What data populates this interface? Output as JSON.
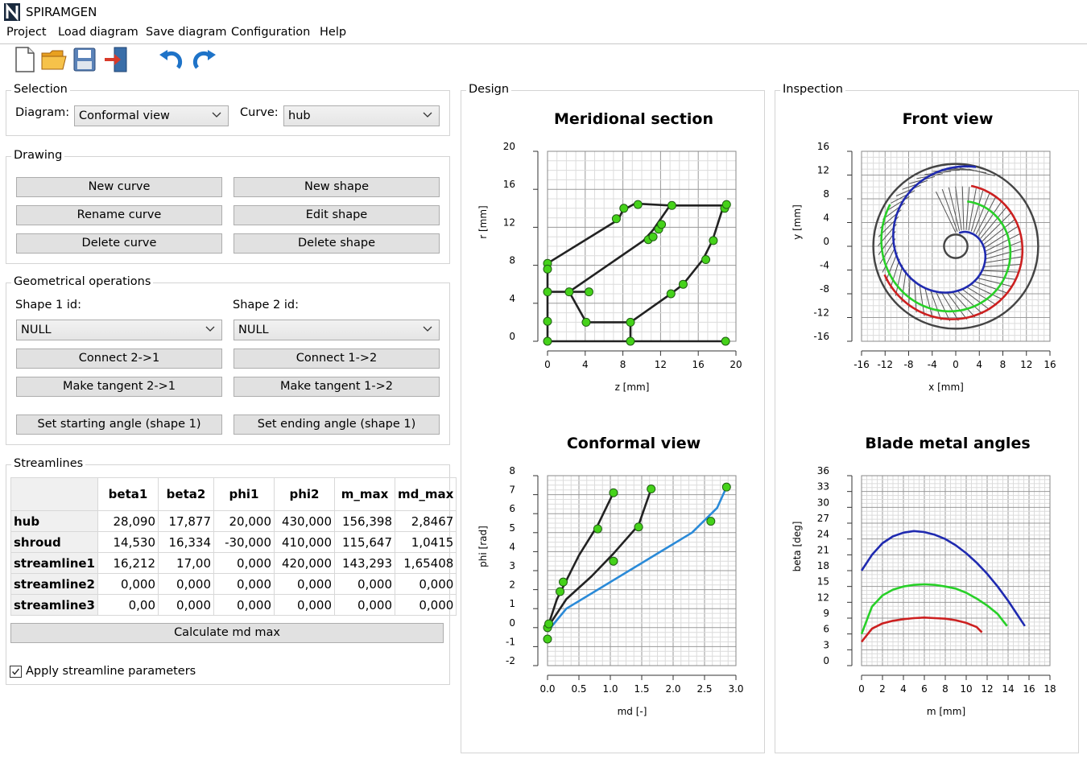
{
  "app": {
    "title": "SPIRAMGEN"
  },
  "menu": {
    "items": [
      "Project",
      "Load diagram",
      "Save diagram",
      "Configuration",
      "Help"
    ]
  },
  "toolbar": {
    "buttons": [
      "new-document-icon",
      "open-folder-icon",
      "save-icon",
      "exit-icon",
      "undo-icon",
      "redo-icon"
    ]
  },
  "selection": {
    "title": "Selection",
    "diagram_label": "Diagram:",
    "diagram_value": "Conformal view",
    "curve_label": "Curve:",
    "curve_value": "hub"
  },
  "drawing": {
    "title": "Drawing",
    "new_curve": "New curve",
    "new_shape": "New shape",
    "rename_curve": "Rename curve",
    "edit_shape": "Edit shape",
    "delete_curve": "Delete curve",
    "delete_shape": "Delete shape"
  },
  "geometry": {
    "title": "Geometrical operations",
    "shape1_label": "Shape 1 id:",
    "shape2_label": "Shape 2 id:",
    "shape1_value": "NULL",
    "shape2_value": "NULL",
    "connect_21": "Connect 2->1",
    "connect_12": "Connect 1->2",
    "tangent_21": "Make tangent 2->1",
    "tangent_12": "Make tangent 1->2",
    "start_angle": "Set starting angle (shape 1)",
    "end_angle": "Set ending angle (shape 1)"
  },
  "streamlines": {
    "title": "Streamlines",
    "columns": [
      "beta1",
      "beta2",
      "phi1",
      "phi2",
      "m_max",
      "md_max"
    ],
    "rows": [
      {
        "name": "hub",
        "values": [
          "28,090",
          "17,877",
          "20,000",
          "430,000",
          "156,398",
          "2,8467"
        ]
      },
      {
        "name": "shroud",
        "values": [
          "14,530",
          "16,334",
          "-30,000",
          "410,000",
          "115,647",
          "1,0415"
        ]
      },
      {
        "name": "streamline1",
        "values": [
          "16,212",
          "17,00",
          "0,000",
          "420,000",
          "143,293",
          "1,65408"
        ]
      },
      {
        "name": "streamline2",
        "values": [
          "0,000",
          "0,000",
          "0,000",
          "0,000",
          "0,000",
          "0,000"
        ]
      },
      {
        "name": "streamline3",
        "values": [
          "0,00",
          "0,000",
          "0,000",
          "0,000",
          "0,000",
          "0,000"
        ]
      }
    ],
    "calc_button": "Calculate md max",
    "apply_label": "Apply streamline parameters",
    "apply_checked": true
  },
  "design": {
    "title": "Design"
  },
  "inspection": {
    "title": "Inspection"
  },
  "chart_data": [
    {
      "id": "meridional",
      "type": "line",
      "title": "Meridional section",
      "xlabel": "z [mm]",
      "ylabel": "r [mm]",
      "xlim": [
        0,
        20
      ],
      "ylim": [
        0,
        20
      ],
      "xticks": [
        0,
        4,
        8,
        12,
        16,
        20
      ],
      "yticks": [
        0,
        4,
        8,
        12,
        16,
        20
      ],
      "grid": true,
      "series": [
        {
          "color": "#222222",
          "points": [
            [
              0,
              8.2
            ],
            [
              7.5,
              12.8
            ],
            [
              8,
              13.8
            ],
            [
              9.3,
              14.5
            ]
          ]
        },
        {
          "color": "#222222",
          "points": [
            [
              9.3,
              14.5
            ],
            [
              13,
              14.3
            ],
            [
              18.9,
              14.3
            ]
          ]
        },
        {
          "color": "#222222",
          "points": [
            [
              0,
              5.2
            ],
            [
              2.3,
              5.2
            ],
            [
              4.4,
              5.2
            ]
          ]
        },
        {
          "color": "#222222",
          "points": [
            [
              2.3,
              5.2
            ],
            [
              10.2,
              10.6
            ],
            [
              11.2,
              11.7
            ],
            [
              13,
              14.3
            ]
          ]
        },
        {
          "color": "#222222",
          "points": [
            [
              2.3,
              5.2
            ],
            [
              4.1,
              2
            ]
          ]
        },
        {
          "color": "#222222",
          "points": [
            [
              0,
              8.2
            ],
            [
              0,
              5.2
            ],
            [
              0,
              2.1
            ],
            [
              0,
              0
            ]
          ]
        },
        {
          "color": "#222222",
          "points": [
            [
              4.1,
              2
            ],
            [
              8.8,
              2
            ],
            [
              8.8,
              0
            ]
          ]
        },
        {
          "color": "#222222",
          "points": [
            [
              8.8,
              2
            ],
            [
              13.1,
              5
            ],
            [
              14.4,
              6
            ],
            [
              16.5,
              8.6
            ],
            [
              17.5,
              10.6
            ],
            [
              18.6,
              14
            ],
            [
              18.9,
              14.3
            ]
          ]
        },
        {
          "color": "#222222",
          "points": [
            [
              0,
              0
            ],
            [
              18.9,
              0
            ]
          ]
        },
        {
          "color": "#cc3333",
          "points": [
            [
              7.0,
              12.6
            ],
            [
              7.6,
              13.3
            ]
          ]
        }
      ],
      "markers": [
        [
          0,
          8.2
        ],
        [
          0,
          7.6
        ],
        [
          0,
          5.2
        ],
        [
          2.3,
          5.2
        ],
        [
          4.4,
          5.2
        ],
        [
          0,
          2.1
        ],
        [
          0,
          0
        ],
        [
          4.1,
          2
        ],
        [
          8.8,
          2
        ],
        [
          8.8,
          0
        ],
        [
          7.3,
          12.9
        ],
        [
          8.1,
          14
        ],
        [
          9.6,
          14.4
        ],
        [
          10.7,
          10.7
        ],
        [
          11.2,
          11
        ],
        [
          11.8,
          11.8
        ],
        [
          12.1,
          12.3
        ],
        [
          13.2,
          14.3
        ],
        [
          13.1,
          5
        ],
        [
          14.4,
          6
        ],
        [
          16.8,
          8.6
        ],
        [
          17.6,
          10.6
        ],
        [
          18.8,
          14
        ],
        [
          19,
          14.4
        ],
        [
          18.9,
          0
        ]
      ]
    },
    {
      "id": "frontview",
      "type": "line",
      "title": "Front view",
      "xlabel": "x [mm]",
      "ylabel": "y [mm]",
      "xlim": [
        -16,
        16
      ],
      "ylim": [
        -16,
        16
      ],
      "xticks": [
        -16,
        -12,
        -8,
        -4,
        0,
        4,
        8,
        12,
        16
      ],
      "yticks": [
        -16,
        -12,
        -8,
        -4,
        0,
        4,
        8,
        12,
        16
      ],
      "grid": true,
      "circles": [
        {
          "r": 14.0,
          "color": "#444444"
        },
        {
          "r": 2.0,
          "color": "#444444"
        }
      ],
      "spirals": [
        {
          "name": "hub",
          "color": "#1f2ab0",
          "r0": 2.3,
          "r1": 13.8
        },
        {
          "name": "streamline1",
          "color": "#28d028",
          "r0": 7.8,
          "r1": 13.2
        },
        {
          "name": "shroud",
          "color": "#cc2020",
          "r0": 10.5,
          "r1": 13.0
        }
      ]
    },
    {
      "id": "conformal",
      "type": "line",
      "title": "Conformal view",
      "xlabel": "md [-]",
      "ylabel": "phi [rad]",
      "xlim": [
        0,
        3
      ],
      "ylim": [
        -2,
        8
      ],
      "xticks": [
        0.0,
        0.5,
        1.0,
        1.5,
        2.0,
        2.5,
        3.0
      ],
      "yticks": [
        -2,
        -1,
        0,
        1,
        2,
        3,
        4,
        5,
        6,
        7,
        8
      ],
      "grid": true,
      "series": [
        {
          "name": "hub",
          "color": "#2a8ad8",
          "points": [
            [
              0,
              -0.2
            ],
            [
              0.3,
              1.0
            ],
            [
              0.8,
              2.0
            ],
            [
              1.3,
              3.0
            ],
            [
              1.8,
              4.0
            ],
            [
              2.3,
              5.0
            ],
            [
              2.7,
              6.3
            ],
            [
              2.85,
              7.4
            ]
          ]
        },
        {
          "name": "streamline1",
          "color": "#222222",
          "points": [
            [
              0,
              0
            ],
            [
              0.3,
              1.5
            ],
            [
              0.7,
              2.7
            ],
            [
              1.05,
              3.9
            ],
            [
              1.45,
              5.4
            ],
            [
              1.65,
              7.3
            ]
          ]
        },
        {
          "name": "shroud",
          "color": "#222222",
          "points": [
            [
              0,
              0
            ],
            [
              0.15,
              1.5
            ],
            [
              0.5,
              3.8
            ],
            [
              0.8,
              5.4
            ],
            [
              1.05,
              7.1
            ]
          ]
        }
      ],
      "markers": [
        [
          0,
          -0.6
        ],
        [
          0,
          0
        ],
        [
          0.02,
          0.2
        ],
        [
          0.2,
          1.9
        ],
        [
          0.25,
          2.4
        ],
        [
          0.8,
          5.2
        ],
        [
          1.05,
          7.1
        ],
        [
          1.05,
          3.5
        ],
        [
          1.45,
          5.3
        ],
        [
          1.65,
          7.3
        ],
        [
          2.6,
          5.6
        ],
        [
          2.85,
          7.4
        ]
      ]
    },
    {
      "id": "bladeangles",
      "type": "line",
      "title": "Blade metal angles",
      "xlabel": "m [mm]",
      "ylabel": "beta [deg]",
      "xlim": [
        0,
        18
      ],
      "ylim": [
        0,
        36
      ],
      "xticks": [
        0,
        2,
        4,
        6,
        8,
        10,
        12,
        14,
        16,
        18
      ],
      "yticks": [
        0,
        3,
        6,
        9,
        12,
        15,
        18,
        21,
        24,
        27,
        30,
        33,
        36
      ],
      "grid": true,
      "series": [
        {
          "name": "hub",
          "color": "#1f2ab0",
          "points": [
            [
              0,
              18.0
            ],
            [
              1,
              21.0
            ],
            [
              2,
              23.2
            ],
            [
              3,
              24.5
            ],
            [
              4,
              25.2
            ],
            [
              5,
              25.5
            ],
            [
              6,
              25.3
            ],
            [
              7,
              24.8
            ],
            [
              8,
              24.0
            ],
            [
              9,
              22.8
            ],
            [
              10,
              21.3
            ],
            [
              11,
              19.5
            ],
            [
              12,
              17.4
            ],
            [
              13,
              15.0
            ],
            [
              14,
              12.3
            ],
            [
              15,
              9.3
            ],
            [
              15.6,
              7.5
            ]
          ]
        },
        {
          "name": "streamline1",
          "color": "#28d028",
          "points": [
            [
              0,
              6.0
            ],
            [
              1,
              11.2
            ],
            [
              2,
              13.3
            ],
            [
              3,
              14.4
            ],
            [
              4,
              15.0
            ],
            [
              5,
              15.3
            ],
            [
              6,
              15.4
            ],
            [
              7,
              15.3
            ],
            [
              8,
              15.0
            ],
            [
              9,
              14.6
            ],
            [
              10,
              13.8
            ],
            [
              11,
              12.7
            ],
            [
              12,
              11.4
            ],
            [
              13,
              9.8
            ],
            [
              13.9,
              7.5
            ]
          ]
        },
        {
          "name": "shroud",
          "color": "#cc2020",
          "points": [
            [
              0,
              4.5
            ],
            [
              1,
              7.0
            ],
            [
              2,
              8.0
            ],
            [
              3,
              8.5
            ],
            [
              4,
              8.8
            ],
            [
              5,
              9.0
            ],
            [
              6,
              9.1
            ],
            [
              7,
              9.0
            ],
            [
              8,
              8.9
            ],
            [
              9,
              8.6
            ],
            [
              10,
              8.1
            ],
            [
              11,
              7.3
            ],
            [
              11.5,
              6.3
            ]
          ]
        }
      ]
    }
  ]
}
